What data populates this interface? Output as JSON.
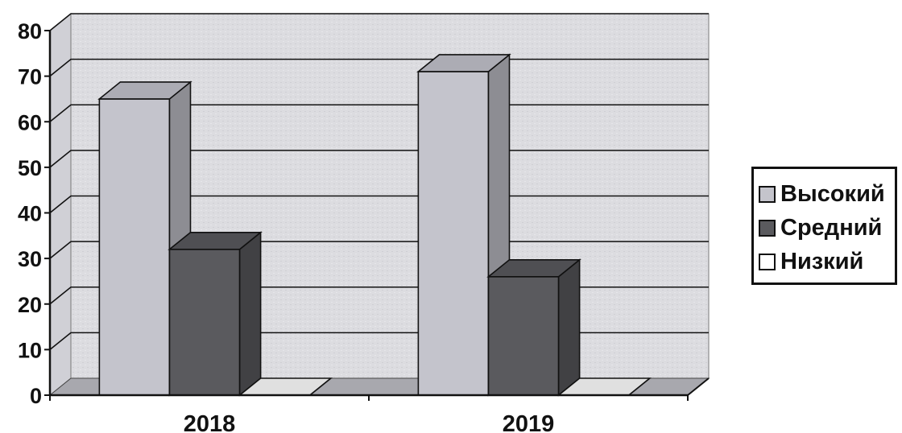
{
  "chart_data": {
    "type": "bar",
    "categories": [
      "2018",
      "2019"
    ],
    "series": [
      {
        "name": "Высокий",
        "values": [
          65,
          71
        ],
        "color": "#c4c4cc"
      },
      {
        "name": "Средний",
        "values": [
          32,
          26
        ],
        "color": "#5a5a5e"
      },
      {
        "name": "Низкий",
        "values": [
          0,
          0
        ],
        "color": "#ffffff"
      }
    ],
    "ylim": [
      0,
      80
    ],
    "yticks": [
      "0",
      "10",
      "20",
      "30",
      "40",
      "50",
      "60",
      "70",
      "80"
    ],
    "grid": true,
    "legend": "right",
    "style": "3d"
  }
}
